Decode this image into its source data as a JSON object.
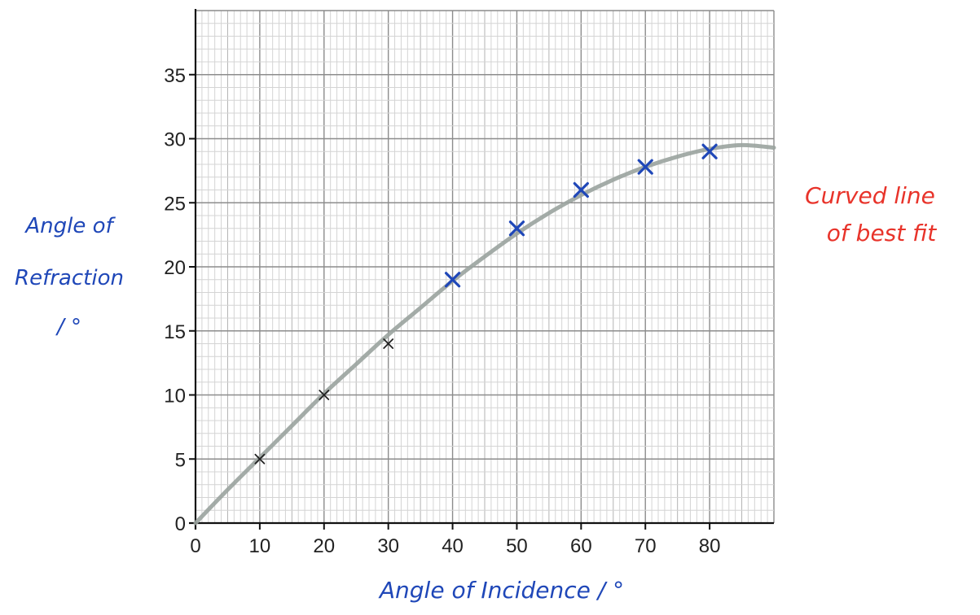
{
  "chart_data": {
    "type": "scatter",
    "title": "",
    "xlabel": "Angle of Incidence / °",
    "ylabel_lines": [
      "Angle of",
      "Refraction",
      "/ °"
    ],
    "xlim": [
      0,
      90
    ],
    "ylim": [
      0,
      40
    ],
    "x_ticks": [
      0,
      10,
      20,
      30,
      40,
      50,
      60,
      70,
      80
    ],
    "y_ticks": [
      0,
      5,
      10,
      15,
      20,
      25,
      30,
      35
    ],
    "grid": true,
    "series": [
      {
        "marker": "x",
        "color": "#222222",
        "points": [
          [
            10,
            5
          ],
          [
            20,
            10
          ],
          [
            30,
            14
          ]
        ]
      },
      {
        "marker": "x",
        "color": "#1f47b8",
        "points": [
          [
            40,
            19
          ],
          [
            50,
            23
          ],
          [
            60,
            26
          ],
          [
            70,
            27.8
          ],
          [
            80,
            29
          ]
        ]
      }
    ],
    "curve_color": "#9aa39f",
    "curve_points": [
      [
        0,
        0
      ],
      [
        5,
        2.6
      ],
      [
        10,
        5.1
      ],
      [
        15,
        7.6
      ],
      [
        20,
        10.1
      ],
      [
        25,
        12.4
      ],
      [
        30,
        14.7
      ],
      [
        35,
        16.8
      ],
      [
        40,
        18.9
      ],
      [
        45,
        20.8
      ],
      [
        50,
        22.6
      ],
      [
        55,
        24.2
      ],
      [
        60,
        25.6
      ],
      [
        65,
        26.8
      ],
      [
        70,
        27.8
      ],
      [
        75,
        28.6
      ],
      [
        80,
        29.2
      ],
      [
        85,
        29.5
      ],
      [
        90,
        29.3
      ]
    ],
    "annotation_lines": [
      "Curved line",
      "of best fit"
    ],
    "annotation_color": "#e8332a"
  }
}
